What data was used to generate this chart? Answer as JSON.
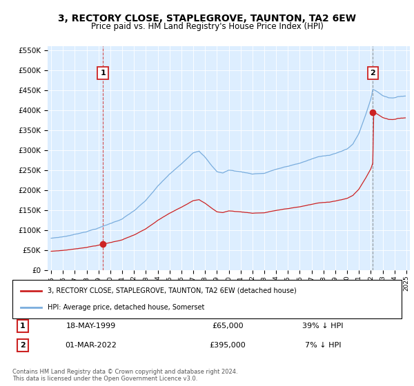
{
  "title": "3, RECTORY CLOSE, STAPLEGROVE, TAUNTON, TA2 6EW",
  "subtitle": "Price paid vs. HM Land Registry's House Price Index (HPI)",
  "legend_label1": "3, RECTORY CLOSE, STAPLEGROVE, TAUNTON, TA2 6EW (detached house)",
  "legend_label2": "HPI: Average price, detached house, Somerset",
  "annotation1_date": "18-MAY-1999",
  "annotation1_price": "£65,000",
  "annotation1_hpi": "39% ↓ HPI",
  "annotation2_date": "01-MAR-2022",
  "annotation2_price": "£395,000",
  "annotation2_hpi": "7% ↓ HPI",
  "footnote": "Contains HM Land Registry data © Crown copyright and database right 2024.\nThis data is licensed under the Open Government Licence v3.0.",
  "red_color": "#cc2222",
  "blue_color": "#7aaddd",
  "bg_color": "#ddeeff",
  "ylim": [
    0,
    560000
  ],
  "sale1_x": 1999.37,
  "sale1_y": 65000,
  "sale2_x": 2022.17,
  "sale2_y": 395000,
  "xmin": 1995,
  "xmax": 2025
}
